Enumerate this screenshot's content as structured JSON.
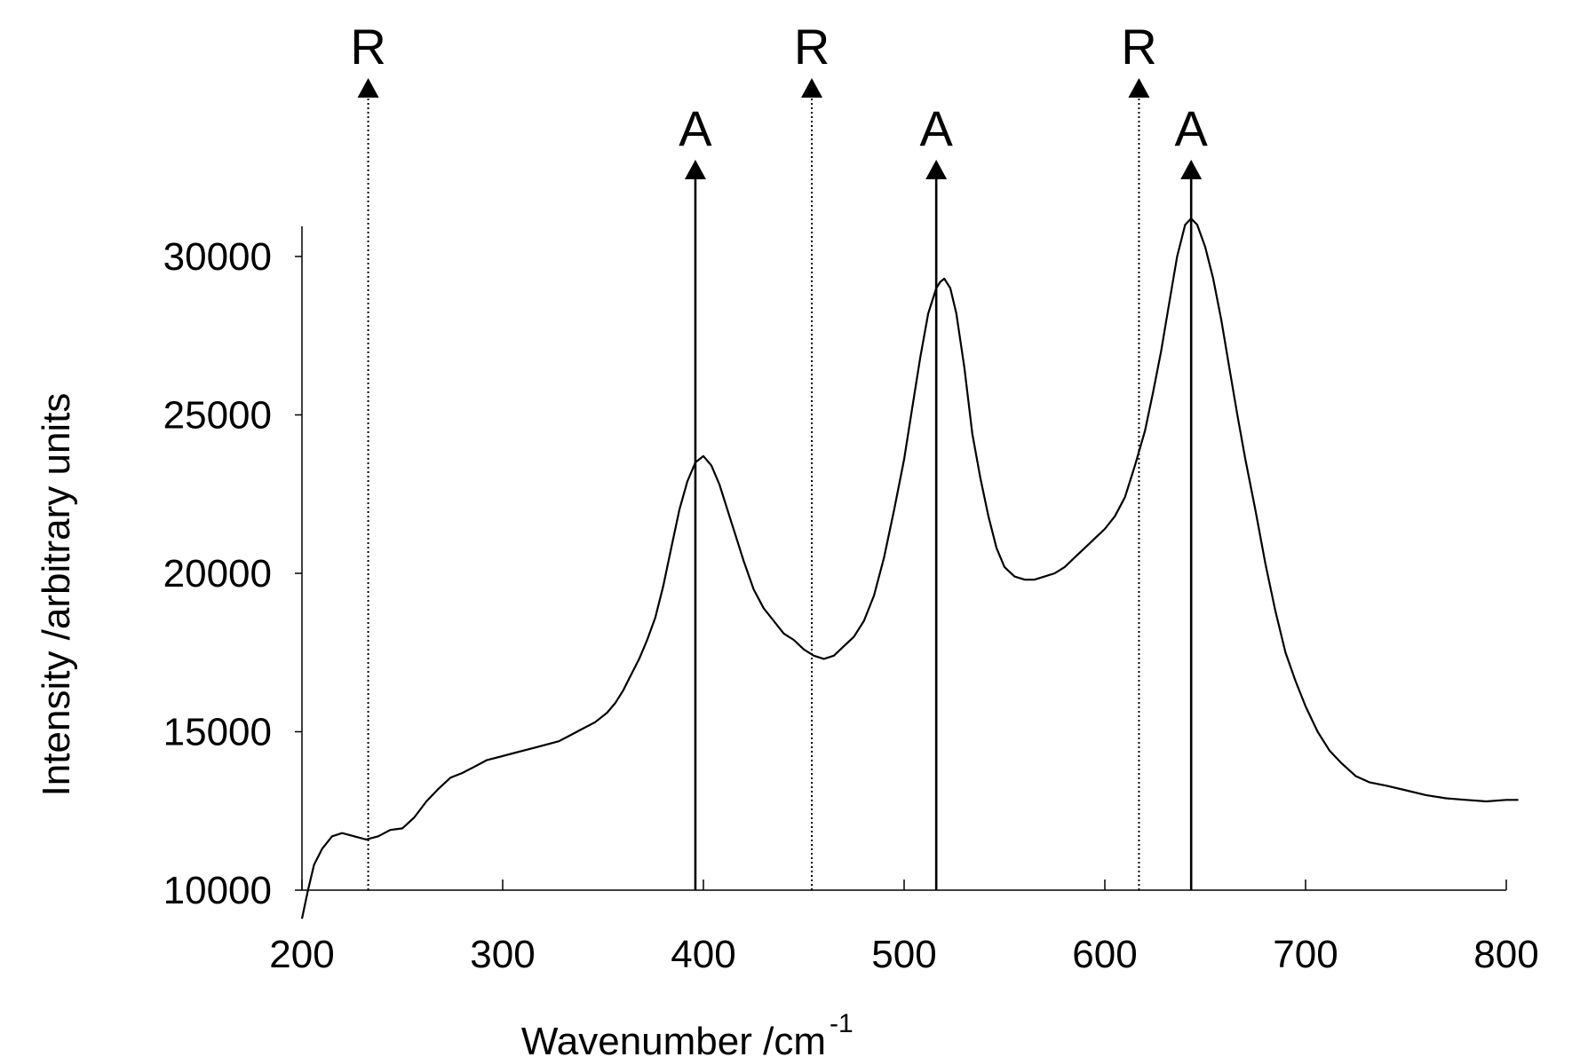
{
  "chart_data": {
    "type": "line",
    "title": "",
    "xlabel": "Wavenumber /cm",
    "xlabel_superscript": "-1",
    "ylabel": "Intensity /arbitrary units",
    "xlim": [
      200,
      810
    ],
    "ylim": [
      10000,
      31000
    ],
    "x_ticks": [
      200,
      300,
      400,
      500,
      600,
      700,
      800
    ],
    "x_tick_labels": [
      "200",
      "300",
      "400",
      "500",
      "600",
      "700",
      "800"
    ],
    "y_ticks": [
      10000,
      15000,
      20000,
      25000,
      30000
    ],
    "y_tick_labels": [
      "10000",
      "15000",
      "20000",
      "25000",
      "30000"
    ],
    "grid": false,
    "legend": "none",
    "series": [
      {
        "x": [
          200,
          203,
          206,
          210,
          215,
          220,
          226,
          232,
          238,
          244,
          250,
          256,
          262,
          268,
          274,
          280,
          286,
          292,
          298,
          304,
          310,
          316,
          322,
          328,
          334,
          340,
          346,
          352,
          356,
          360,
          364,
          368,
          372,
          376,
          380,
          384,
          388,
          392,
          396,
          400,
          404,
          408,
          412,
          416,
          420,
          425,
          430,
          435,
          440,
          445,
          450,
          455,
          460,
          465,
          470,
          475,
          480,
          485,
          490,
          495,
          500,
          504,
          508,
          512,
          516,
          518,
          520,
          523,
          526,
          530,
          534,
          538,
          542,
          546,
          550,
          555,
          560,
          565,
          570,
          575,
          580,
          585,
          590,
          595,
          600,
          605,
          610,
          615,
          620,
          624,
          628,
          632,
          636,
          640,
          643,
          646,
          650,
          654,
          658,
          662,
          666,
          670,
          675,
          680,
          685,
          690,
          695,
          700,
          706,
          712,
          718,
          725,
          732,
          740,
          750,
          760,
          770,
          780,
          790,
          800,
          806
        ],
        "y": [
          9100,
          10000,
          10800,
          11300,
          11700,
          11800,
          11700,
          11600,
          11700,
          11900,
          11950,
          12300,
          12800,
          13200,
          13550,
          13700,
          13900,
          14100,
          14200,
          14300,
          14400,
          14500,
          14600,
          14700,
          14900,
          15100,
          15300,
          15600,
          15900,
          16300,
          16800,
          17300,
          17900,
          18600,
          19600,
          20800,
          22000,
          22900,
          23500,
          23700,
          23400,
          22800,
          22000,
          21200,
          20400,
          19500,
          18900,
          18500,
          18100,
          17900,
          17600,
          17400,
          17300,
          17400,
          17700,
          18000,
          18500,
          19300,
          20500,
          22000,
          23600,
          25200,
          26800,
          28200,
          29000,
          29200,
          29300,
          29000,
          28200,
          26500,
          24400,
          23000,
          21800,
          20800,
          20200,
          19900,
          19800,
          19800,
          19900,
          20000,
          20200,
          20500,
          20800,
          21100,
          21400,
          21800,
          22400,
          23400,
          24500,
          25700,
          27000,
          28500,
          30000,
          31000,
          31200,
          31000,
          30300,
          29300,
          28000,
          26500,
          25000,
          23600,
          22000,
          20300,
          18800,
          17500,
          16600,
          15800,
          15000,
          14400,
          14000,
          13600,
          13400,
          13300,
          13150,
          13000,
          12900,
          12850,
          12800,
          12850,
          12850
        ]
      }
    ],
    "markers": [
      {
        "x": 233,
        "label": "R",
        "style": "dotted",
        "top_fraction": "high"
      },
      {
        "x": 396,
        "label": "A",
        "style": "solid",
        "top_fraction": "low"
      },
      {
        "x": 454,
        "label": "R",
        "style": "dotted",
        "top_fraction": "high"
      },
      {
        "x": 516,
        "label": "A",
        "style": "solid",
        "top_fraction": "low"
      },
      {
        "x": 617,
        "label": "R",
        "style": "dotted",
        "top_fraction": "high"
      },
      {
        "x": 643,
        "label": "A",
        "style": "solid",
        "top_fraction": "low"
      }
    ]
  }
}
